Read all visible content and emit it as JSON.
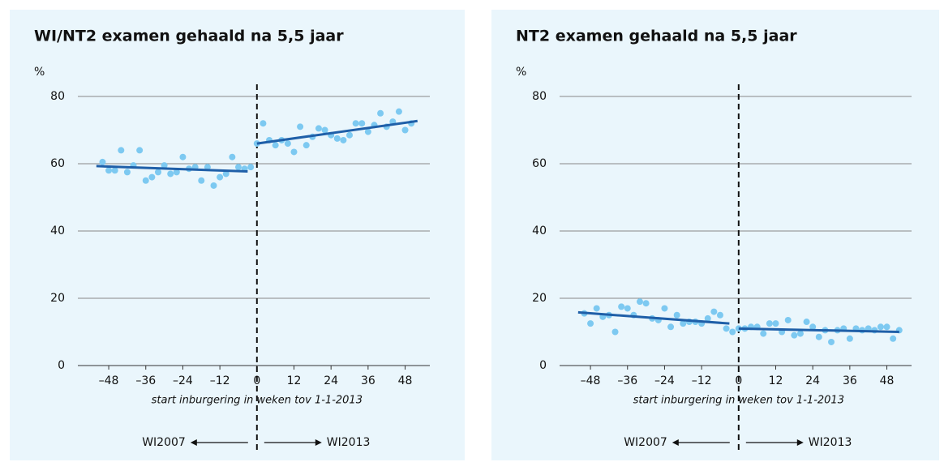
{
  "chart_data": [
    {
      "type": "scatter",
      "title": "WI/NT2 examen gehaald na 5,5 jaar",
      "y_unit": "%",
      "x_label": "start inburgering in weken tov 1-1-2013",
      "annotations": [
        "WI2007",
        "WI2013"
      ],
      "xlim": [
        -58,
        56
      ],
      "ylim": [
        0,
        80
      ],
      "xticks": [
        {
          "value": -48,
          "label": "–48"
        },
        {
          "value": -36,
          "label": "–36"
        },
        {
          "value": -24,
          "label": "–24"
        },
        {
          "value": -12,
          "label": "–12"
        },
        0,
        12,
        24,
        36,
        48
      ],
      "yticks": [
        0,
        20,
        40,
        60,
        80
      ],
      "grid": true,
      "series": [
        {
          "kind": "points",
          "color": "#7dc9f1",
          "x": [
            -50,
            -48,
            -46,
            -44,
            -42,
            -40,
            -38,
            -36,
            -34,
            -32,
            -30,
            -28,
            -26,
            -24,
            -22,
            -20,
            -18,
            -16,
            -14,
            -12,
            -10,
            -8,
            -6,
            -4,
            -2
          ],
          "values": [
            60.5,
            58,
            58,
            64,
            57.5,
            59.5,
            64,
            55,
            56,
            57.5,
            59.5,
            57,
            57.5,
            62,
            58.5,
            59,
            55,
            59,
            53.5,
            56,
            57,
            62,
            59,
            58.5,
            59
          ]
        },
        {
          "kind": "points",
          "color": "#7dc9f1",
          "x": [
            0,
            2,
            4,
            6,
            8,
            10,
            12,
            14,
            16,
            18,
            20,
            22,
            24,
            26,
            28,
            30,
            32,
            34,
            36,
            38,
            40,
            42,
            44,
            46,
            48,
            50
          ],
          "values": [
            66,
            72,
            67,
            65.5,
            67,
            66,
            63.5,
            71,
            65.5,
            68,
            70.5,
            70,
            68.5,
            67.5,
            67,
            68.5,
            72,
            72,
            69.5,
            71.5,
            75,
            71,
            72.5,
            75.5,
            70,
            72
          ]
        },
        {
          "kind": "trend",
          "color": "#1f5fa8",
          "x": [
            -52,
            -3
          ],
          "values": [
            59.3,
            57.7
          ]
        },
        {
          "kind": "trend",
          "color": "#1f5fa8",
          "x": [
            0,
            52
          ],
          "values": [
            66,
            72.7
          ]
        }
      ]
    },
    {
      "type": "scatter",
      "title": "NT2 examen gehaald na 5,5 jaar",
      "y_unit": "%",
      "x_label": "start inburgering in weken tov 1-1-2013",
      "annotations": [
        "WI2007",
        "WI2013"
      ],
      "xlim": [
        -58,
        56
      ],
      "ylim": [
        0,
        80
      ],
      "xticks": [
        {
          "value": -48,
          "label": "–48"
        },
        {
          "value": -36,
          "label": "–36"
        },
        {
          "value": -24,
          "label": "–24"
        },
        {
          "value": -12,
          "label": "–12"
        },
        0,
        12,
        24,
        36,
        48
      ],
      "yticks": [
        0,
        20,
        40,
        60,
        80
      ],
      "grid": true,
      "series": [
        {
          "kind": "points",
          "color": "#7dc9f1",
          "x": [
            -50,
            -48,
            -46,
            -44,
            -42,
            -40,
            -38,
            -36,
            -34,
            -32,
            -30,
            -28,
            -26,
            -24,
            -22,
            -20,
            -18,
            -16,
            -14,
            -12,
            -10,
            -8,
            -6,
            -4,
            -2
          ],
          "values": [
            15.5,
            12.5,
            17,
            14.5,
            15,
            10,
            17.5,
            17,
            15,
            19,
            18.5,
            14,
            13.5,
            17,
            11.5,
            15,
            12.5,
            13,
            13,
            12.5,
            14,
            16,
            15,
            11,
            10
          ]
        },
        {
          "kind": "points",
          "color": "#7dc9f1",
          "x": [
            0,
            2,
            4,
            6,
            8,
            10,
            12,
            14,
            16,
            18,
            20,
            22,
            24,
            26,
            28,
            30,
            32,
            34,
            36,
            38,
            40,
            42,
            44,
            46,
            48,
            50,
            52
          ],
          "values": [
            11,
            11,
            11.5,
            11.5,
            9.5,
            12.5,
            12.5,
            10,
            13.5,
            9,
            9.5,
            13,
            11.5,
            8.5,
            10.5,
            7,
            10.5,
            11,
            8,
            11,
            10.5,
            11,
            10.5,
            11.5,
            11.5,
            8,
            10.5
          ]
        },
        {
          "kind": "trend",
          "color": "#1f5fa8",
          "x": [
            -52,
            -3
          ],
          "values": [
            15.8,
            12.5
          ]
        },
        {
          "kind": "trend",
          "color": "#1f5fa8",
          "x": [
            0,
            52
          ],
          "values": [
            11,
            10
          ]
        }
      ]
    }
  ]
}
